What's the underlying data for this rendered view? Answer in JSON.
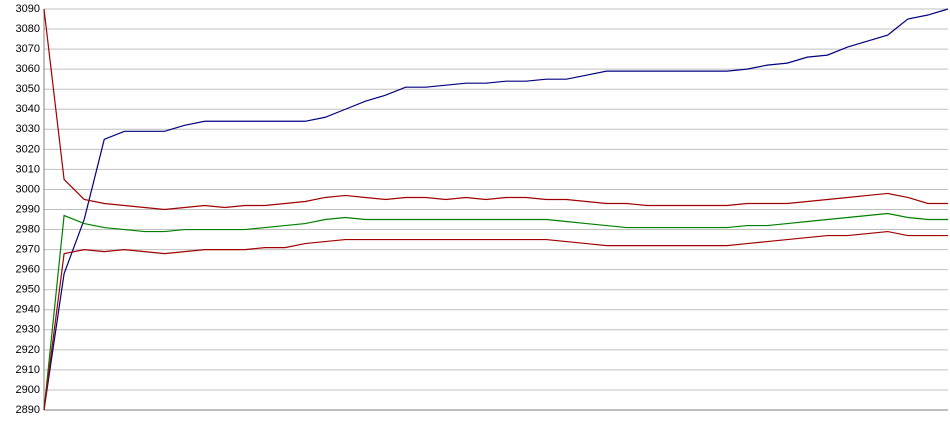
{
  "chart_data": {
    "type": "line",
    "categories": [
      null,
      null,
      null,
      null,
      null,
      null,
      null,
      null,
      null,
      null,
      null,
      null,
      null,
      null,
      null,
      null,
      null,
      null,
      null,
      null,
      null,
      null,
      null,
      null,
      null,
      null,
      null,
      null,
      null,
      null,
      null,
      null,
      null,
      null,
      null,
      null,
      null,
      null,
      null,
      null,
      null,
      null,
      null,
      null,
      null,
      null
    ],
    "series": [
      {
        "color": "#000080",
        "values": [
          2890,
          2958,
          2985,
          3025,
          3029,
          3029,
          3029,
          3032,
          3034,
          3034,
          3034,
          3034,
          3034,
          3034,
          3036,
          3040,
          3044,
          3047,
          3051,
          3051,
          3052,
          3053,
          3053,
          3054,
          3054,
          3055,
          3055,
          3057,
          3059,
          3059,
          3059,
          3059,
          3059,
          3059,
          3059,
          3060,
          3062,
          3063,
          3066,
          3067,
          3071,
          3074,
          3077,
          3085,
          3087,
          3090
        ]
      },
      {
        "color": "#a00000",
        "values": [
          3090,
          3005,
          2995,
          2993,
          2992,
          2991,
          2990,
          2991,
          2992,
          2991,
          2992,
          2992,
          2993,
          2994,
          2996,
          2997,
          2996,
          2995,
          2996,
          2996,
          2995,
          2996,
          2995,
          2996,
          2996,
          2995,
          2995,
          2994,
          2993,
          2993,
          2992,
          2992,
          2992,
          2992,
          2992,
          2993,
          2993,
          2993,
          2994,
          2995,
          2996,
          2997,
          2998,
          2996,
          2993,
          2993
        ]
      },
      {
        "color": "#008000",
        "values": [
          2890,
          2987,
          2983,
          2981,
          2980,
          2979,
          2979,
          2980,
          2980,
          2980,
          2980,
          2981,
          2982,
          2983,
          2985,
          2986,
          2985,
          2985,
          2985,
          2985,
          2985,
          2985,
          2985,
          2985,
          2985,
          2985,
          2984,
          2983,
          2982,
          2981,
          2981,
          2981,
          2981,
          2981,
          2981,
          2982,
          2982,
          2983,
          2984,
          2985,
          2986,
          2987,
          2988,
          2986,
          2985,
          2985
        ]
      },
      {
        "color": "#a00000",
        "values": [
          2890,
          2968,
          2970,
          2969,
          2970,
          2969,
          2968,
          2969,
          2970,
          2970,
          2970,
          2971,
          2971,
          2973,
          2974,
          2975,
          2975,
          2975,
          2975,
          2975,
          2975,
          2975,
          2975,
          2975,
          2975,
          2975,
          2974,
          2973,
          2972,
          2972,
          2972,
          2972,
          2972,
          2972,
          2972,
          2973,
          2974,
          2975,
          2976,
          2977,
          2977,
          2978,
          2979,
          2977,
          2977,
          2977
        ]
      }
    ],
    "ylim": [
      2890,
      3090
    ],
    "yticks": [
      2890,
      2900,
      2910,
      2920,
      2930,
      2940,
      2950,
      2960,
      2970,
      2980,
      2990,
      3000,
      3010,
      3020,
      3030,
      3040,
      3050,
      3060,
      3070,
      3080,
      3090
    ],
    "grid": true
  }
}
